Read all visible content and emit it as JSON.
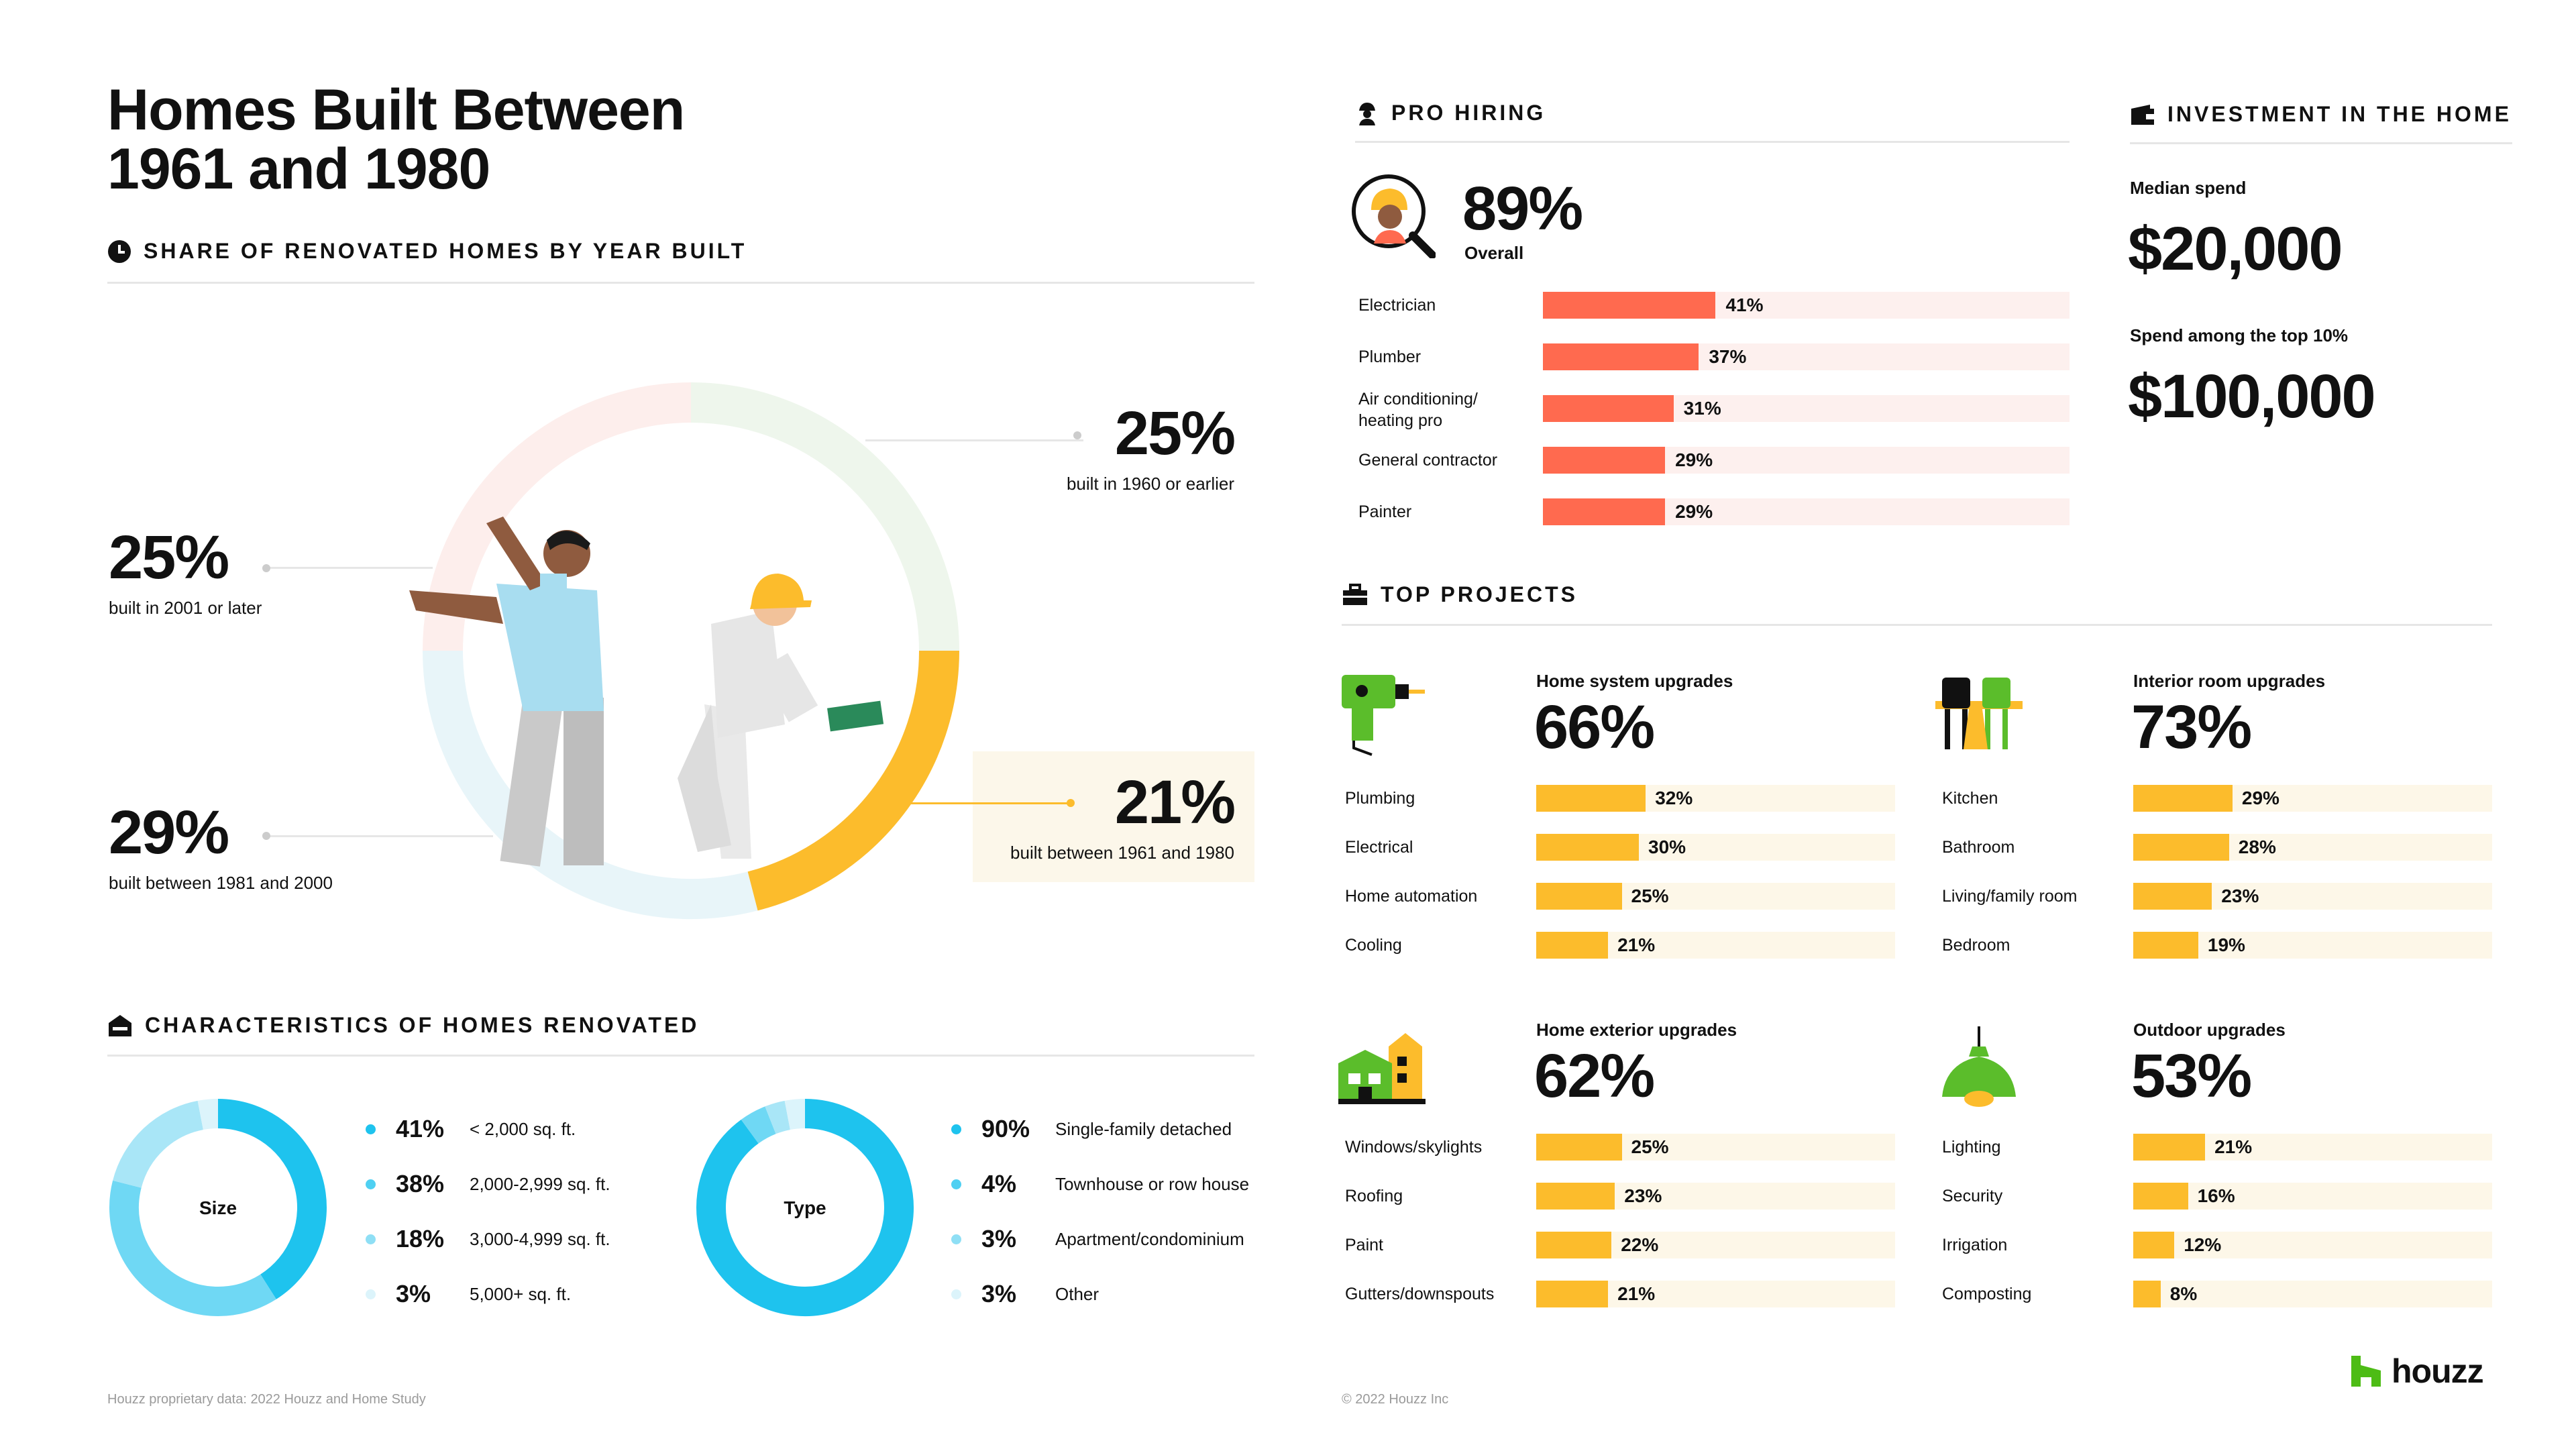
{
  "title_line1": "Homes Built Between",
  "title_line2": "1961 and 1980",
  "share": {
    "heading": "SHARE OF RENOVATED HOMES BY YEAR BUILT",
    "callouts": [
      {
        "pct": "25%",
        "label": "built in 1960 or earlier"
      },
      {
        "pct": "25%",
        "label": "built in 2001 or later"
      },
      {
        "pct": "21%",
        "label": "built between 1961 and 1980"
      },
      {
        "pct": "29%",
        "label": "built between 1981 and 2000"
      }
    ]
  },
  "characteristics": {
    "heading": "CHARACTERISTICS OF HOMES RENOVATED",
    "size": {
      "center": "Size",
      "items": [
        {
          "pct": "41%",
          "label": "< 2,000 sq. ft."
        },
        {
          "pct": "38%",
          "label": "2,000-2,999 sq. ft."
        },
        {
          "pct": "18%",
          "label": "3,000-4,999 sq. ft."
        },
        {
          "pct": "3%",
          "label": "5,000+ sq. ft."
        }
      ]
    },
    "type": {
      "center": "Type",
      "items": [
        {
          "pct": "90%",
          "label": "Single-family detached"
        },
        {
          "pct": "4%",
          "label": "Townhouse or row house"
        },
        {
          "pct": "3%",
          "label": "Apartment/condominium"
        },
        {
          "pct": "3%",
          "label": "Other"
        }
      ]
    }
  },
  "pro_hiring": {
    "heading": "PRO HIRING",
    "overall_pct": "89%",
    "overall_label": "Overall",
    "rows": [
      {
        "label1": "Electrician",
        "label2": "",
        "pct": "41%"
      },
      {
        "label1": "Plumber",
        "label2": "",
        "pct": "37%"
      },
      {
        "label1": "Air conditioning/",
        "label2": "heating pro",
        "pct": "31%"
      },
      {
        "label1": "General contractor",
        "label2": "",
        "pct": "29%"
      },
      {
        "label1": "Painter",
        "label2": "",
        "pct": "29%"
      }
    ]
  },
  "investment": {
    "heading": "INVESTMENT IN THE HOME",
    "median_label": "Median spend",
    "median_value": "$20,000",
    "top_label": "Spend among the top 10%",
    "top_value": "$100,000"
  },
  "top_projects": {
    "heading": "TOP PROJECTS",
    "groups": [
      {
        "title": "Home system upgrades",
        "pct": "66%",
        "rows": [
          {
            "label": "Plumbing",
            "pct": "32%"
          },
          {
            "label": "Electrical",
            "pct": "30%"
          },
          {
            "label": "Home automation",
            "pct": "25%"
          },
          {
            "label": "Cooling",
            "pct": "21%"
          }
        ]
      },
      {
        "title": "Interior room upgrades",
        "pct": "73%",
        "rows": [
          {
            "label": "Kitchen",
            "pct": "29%"
          },
          {
            "label": "Bathroom",
            "pct": "28%"
          },
          {
            "label": "Living/family room",
            "pct": "23%"
          },
          {
            "label": "Bedroom",
            "pct": "19%"
          }
        ]
      },
      {
        "title": "Home exterior upgrades",
        "pct": "62%",
        "rows": [
          {
            "label": "Windows/skylights",
            "pct": "25%"
          },
          {
            "label": "Roofing",
            "pct": "23%"
          },
          {
            "label": "Paint",
            "pct": "22%"
          },
          {
            "label": "Gutters/downspouts",
            "pct": "21%"
          }
        ]
      },
      {
        "title": "Outdoor upgrades",
        "pct": "53%",
        "rows": [
          {
            "label": "Lighting",
            "pct": "21%"
          },
          {
            "label": "Security",
            "pct": "16%"
          },
          {
            "label": "Irrigation",
            "pct": "12%"
          },
          {
            "label": "Composting",
            "pct": "8%"
          }
        ]
      }
    ]
  },
  "footer_left": "Houzz proprietary data: 2022 Houzz and Home Study",
  "footer_mid": "© 2022 Houzz Inc",
  "brand": "houzz",
  "colors": {
    "accent_yellow": "#fcbc2c",
    "coral": "#ff6a4f",
    "cyan": "#1ec3ee"
  },
  "chart_data": [
    {
      "type": "pie",
      "title": "Share of renovated homes by year built",
      "categories": [
        "built in 1960 or earlier",
        "built between 1961 and 1980",
        "built between 1981 and 2000",
        "built in 2001 or later"
      ],
      "values": [
        25,
        21,
        29,
        25
      ]
    },
    {
      "type": "pie",
      "title": "Size",
      "categories": [
        "< 2,000 sq. ft.",
        "2,000-2,999 sq. ft.",
        "3,000-4,999 sq. ft.",
        "5,000+ sq. ft."
      ],
      "values": [
        41,
        38,
        18,
        3
      ]
    },
    {
      "type": "pie",
      "title": "Type",
      "categories": [
        "Single-family detached",
        "Townhouse or row house",
        "Apartment/condominium",
        "Other"
      ],
      "values": [
        90,
        4,
        3,
        3
      ]
    },
    {
      "type": "bar",
      "title": "Pro hiring",
      "categories": [
        "Electrician",
        "Plumber",
        "Air conditioning/heating pro",
        "General contractor",
        "Painter"
      ],
      "values": [
        41,
        37,
        31,
        29,
        29
      ],
      "ylim": [
        0,
        100
      ]
    },
    {
      "type": "bar",
      "title": "Home system upgrades",
      "categories": [
        "Plumbing",
        "Electrical",
        "Home automation",
        "Cooling"
      ],
      "values": [
        32,
        30,
        25,
        21
      ],
      "ylim": [
        0,
        100
      ]
    },
    {
      "type": "bar",
      "title": "Interior room upgrades",
      "categories": [
        "Kitchen",
        "Bathroom",
        "Living/family room",
        "Bedroom"
      ],
      "values": [
        29,
        28,
        23,
        19
      ],
      "ylim": [
        0,
        100
      ]
    },
    {
      "type": "bar",
      "title": "Home exterior upgrades",
      "categories": [
        "Windows/skylights",
        "Roofing",
        "Paint",
        "Gutters/downspouts"
      ],
      "values": [
        25,
        23,
        22,
        21
      ],
      "ylim": [
        0,
        100
      ]
    },
    {
      "type": "bar",
      "title": "Outdoor upgrades",
      "categories": [
        "Lighting",
        "Security",
        "Irrigation",
        "Composting"
      ],
      "values": [
        21,
        16,
        12,
        8
      ],
      "ylim": [
        0,
        100
      ]
    }
  ]
}
